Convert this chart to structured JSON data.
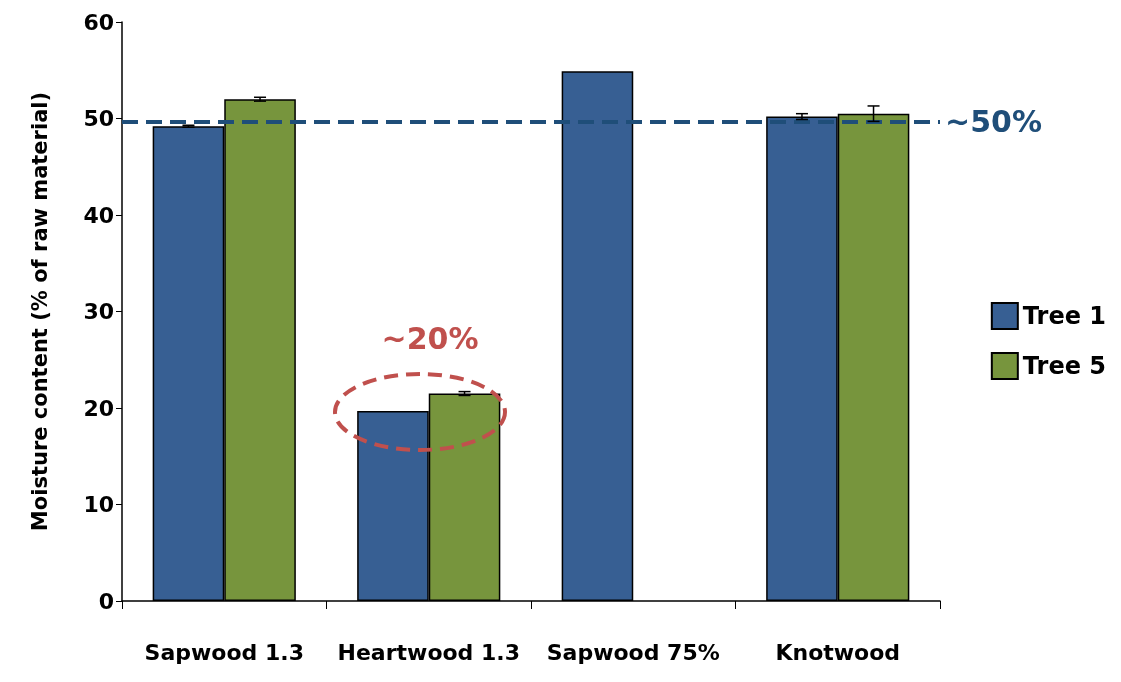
{
  "chart_data": {
    "type": "bar",
    "ylabel": "Moisture content (% of raw material)",
    "categories": [
      "Sapwood 1.3",
      "Heartwood 1.3",
      "Sapwood 75%",
      "Knotwood"
    ],
    "series": [
      {
        "name": "Tree 1",
        "color": "#375f93",
        "values": [
          49.2,
          19.7,
          54.9,
          50.2
        ],
        "errors": [
          0.1,
          null,
          null,
          0.3
        ]
      },
      {
        "name": "Tree 5",
        "color": "#77953d",
        "values": [
          52.0,
          21.5,
          null,
          50.5
        ],
        "errors": [
          0.2,
          0.2,
          null,
          0.8
        ]
      }
    ],
    "ylim": [
      0,
      60
    ],
    "yticks": [
      0,
      10,
      20,
      30,
      40,
      50,
      60
    ],
    "grid": false,
    "legend": "right",
    "ref_lines": [
      {
        "axis": "y",
        "value": 49.7,
        "label": "~50%",
        "color": "#1f4e79",
        "line_style": "dashed"
      }
    ],
    "annotations": [
      "~20%"
    ]
  }
}
